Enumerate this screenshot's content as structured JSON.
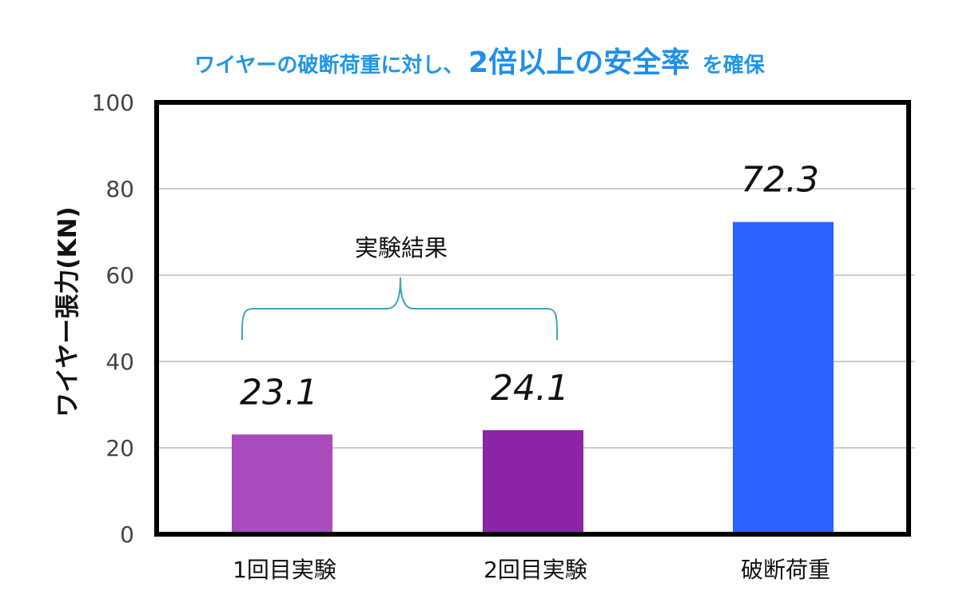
{
  "title": {
    "part1": "ワイヤーの破断荷重に対し、",
    "part2": "2倍以上の安全率",
    "part3": "を確保",
    "color": "#2196E8",
    "emphasis_color": "#1F8FE8"
  },
  "annotation": {
    "label": "実験結果",
    "brace_color": "#3AA7B8"
  },
  "chart_data": {
    "type": "bar",
    "title": "ワイヤーの破断荷重に対し、2倍以上の安全率を確保",
    "xlabel": "",
    "ylabel": "ワイヤー張力(KN)",
    "categories": [
      "1回目実験",
      "2回目実験",
      "破断荷重"
    ],
    "values": [
      23.1,
      24.1,
      72.3
    ],
    "value_labels": [
      "23.1",
      "24.1",
      "72.3"
    ],
    "bar_colors": [
      "#A94ABD",
      "#8C24A8",
      "#2E62FF"
    ],
    "ylim": [
      0,
      100
    ],
    "yticks": [
      0,
      20,
      40,
      60,
      80,
      100
    ],
    "ytick_labels": [
      "0",
      "20",
      "40",
      "60",
      "80",
      "100"
    ],
    "grid": true,
    "legend": "none"
  }
}
